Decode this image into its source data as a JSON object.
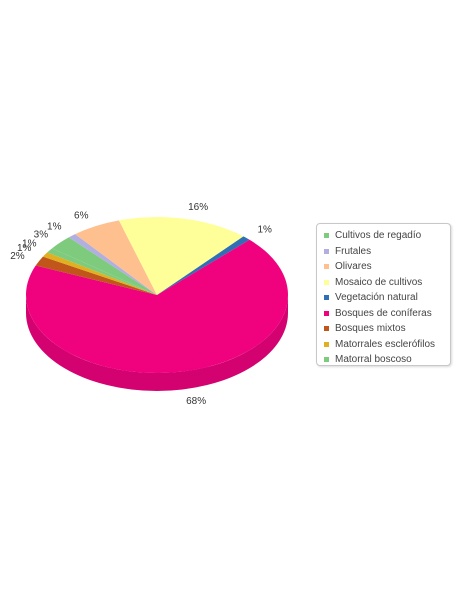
{
  "chart_data": {
    "type": "pie",
    "style": "3d",
    "legend_position": "right",
    "slices": [
      {
        "label": "Cultivos de regadío",
        "value": 3,
        "value_label": "3%",
        "color": "#7ecb7e"
      },
      {
        "label": "Frutales",
        "value": 1,
        "value_label": "1%",
        "color": "#b3aee0"
      },
      {
        "label": "Olivares",
        "value": 6,
        "value_label": "6%",
        "color": "#ffc090"
      },
      {
        "label": "Mosaico de cultivos",
        "value": 16,
        "value_label": "16%",
        "color": "#ffff99"
      },
      {
        "label": "Vegetación natural",
        "value": 1,
        "value_label": "1%",
        "color": "#2f6fb5"
      },
      {
        "label": "Bosques de coníferas",
        "value": 68,
        "value_label": "68%",
        "color": "#f0027f"
      },
      {
        "label": "Bosques mixtos",
        "value": 2,
        "value_label": "2%",
        "color": "#c0561a"
      },
      {
        "label": "Matorrales esclerófilos",
        "value": 1,
        "value_label": "1%",
        "color": "#e0b020"
      },
      {
        "label": "Matorral boscoso",
        "value": 1,
        "value_label": "1%",
        "color": "#7ecb7e"
      }
    ]
  }
}
